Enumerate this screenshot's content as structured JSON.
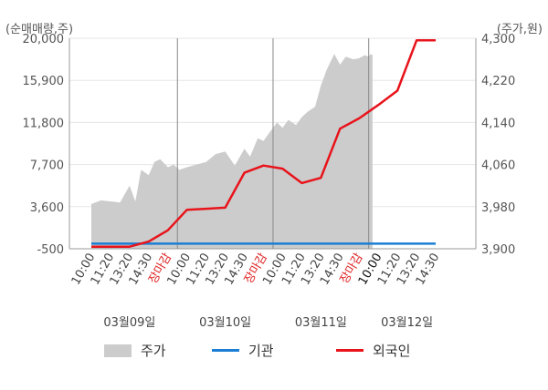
{
  "chart_data": {
    "type": "line",
    "left_axis_unit": "(순매매량,주)",
    "right_axis_unit": "(주가,원)",
    "left_ticks": [
      "20,000",
      "15,900",
      "11,800",
      "7,700",
      "3,600",
      "-500"
    ],
    "left_ylim": [
      -500,
      20000
    ],
    "right_ticks": [
      "4,300",
      "4,220",
      "4,140",
      "4,060",
      "3,980",
      "3,900"
    ],
    "right_ylim": [
      3900,
      4300
    ],
    "x_tick_labels": [
      {
        "text": "10:00",
        "style": "normal"
      },
      {
        "text": "11:20",
        "style": "normal"
      },
      {
        "text": "13:20",
        "style": "normal"
      },
      {
        "text": "14:30",
        "style": "normal"
      },
      {
        "text": "장마감",
        "style": "close"
      },
      {
        "text": "10:00",
        "style": "normal"
      },
      {
        "text": "11:20",
        "style": "normal"
      },
      {
        "text": "13:20",
        "style": "normal"
      },
      {
        "text": "14:30",
        "style": "normal"
      },
      {
        "text": "장마감",
        "style": "close"
      },
      {
        "text": "10:00",
        "style": "normal"
      },
      {
        "text": "11:20",
        "style": "normal"
      },
      {
        "text": "13:20",
        "style": "normal"
      },
      {
        "text": "14:30",
        "style": "normal"
      },
      {
        "text": "장마감",
        "style": "close"
      },
      {
        "text": "10:00",
        "style": "bold"
      },
      {
        "text": "11:20",
        "style": "normal"
      },
      {
        "text": "13:20",
        "style": "normal"
      },
      {
        "text": "14:30",
        "style": "normal"
      }
    ],
    "day_labels": [
      {
        "text": "03월09일",
        "start_tick": 0,
        "end_tick": 4
      },
      {
        "text": "03월10일",
        "start_tick": 5,
        "end_tick": 9
      },
      {
        "text": "03월11일",
        "start_tick": 10,
        "end_tick": 14
      },
      {
        "text": "03월12일",
        "start_tick": 15,
        "end_tick": 18
      }
    ],
    "day_separators_at_tick": [
      4.5,
      9.5,
      14.5
    ],
    "series": [
      {
        "name": "주가",
        "axis": "right",
        "kind": "area",
        "color": "#cccccc",
        "t": [
          0,
          0.5,
          1,
          1.5,
          2,
          2.3,
          2.6,
          3,
          3.3,
          3.6,
          4,
          4.3,
          4.6,
          5,
          5.5,
          6,
          6.5,
          7,
          7.5,
          8,
          8.3,
          8.7,
          9,
          9.3,
          9.7,
          10,
          10.3,
          10.7,
          11,
          11.3,
          11.7,
          12,
          12.3,
          12.7,
          13,
          13.3,
          13.7,
          14,
          14.3,
          14.5,
          14.6,
          14.7
        ],
        "values": [
          3985,
          3992,
          3990,
          3988,
          4020,
          3990,
          4050,
          4040,
          4065,
          4070,
          4055,
          4060,
          4050,
          4055,
          4060,
          4065,
          4080,
          4085,
          4058,
          4090,
          4075,
          4110,
          4105,
          4120,
          4140,
          4130,
          4145,
          4135,
          4150,
          4160,
          4170,
          4210,
          4240,
          4270,
          4250,
          4265,
          4260,
          4262,
          4268,
          4265,
          4270,
          4268
        ]
      },
      {
        "name": "기관",
        "axis": "left",
        "kind": "line",
        "color": "#1a7fd4",
        "t": [
          0,
          18
        ],
        "values": [
          0,
          0
        ]
      },
      {
        "name": "외국인",
        "axis": "left",
        "kind": "line",
        "color": "#e8131b",
        "t": [
          0,
          1,
          2,
          3,
          4,
          5,
          6,
          7,
          8,
          9,
          10,
          11,
          12,
          13,
          14,
          15,
          16,
          17,
          18
        ],
        "values": [
          -300,
          -300,
          -300,
          200,
          1300,
          3300,
          3400,
          3500,
          6900,
          7600,
          7300,
          5900,
          6400,
          11200,
          12200,
          13500,
          14900,
          19800,
          19800
        ]
      }
    ],
    "foreign_line_last_tick": 17,
    "grid": true,
    "legend_position": "bottom"
  },
  "legend": {
    "price_label": "주가",
    "inst_label": "기관",
    "foreign_label": "외국인"
  }
}
